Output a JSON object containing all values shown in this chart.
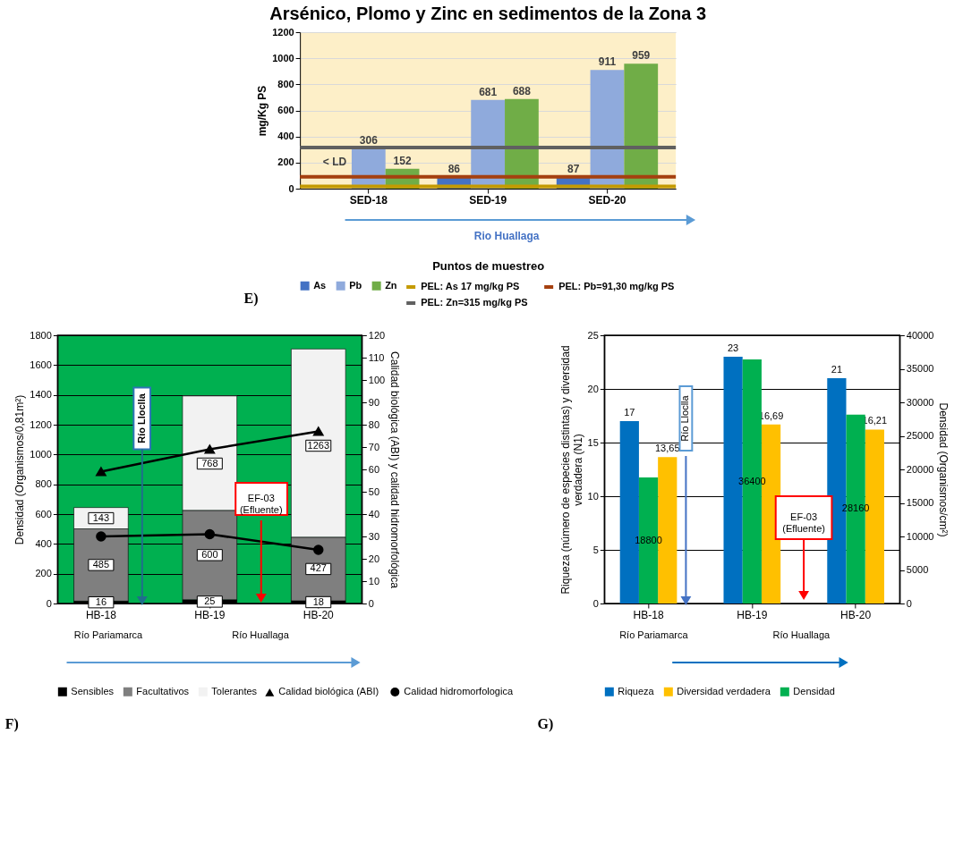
{
  "chart_data": [
    {
      "type": "bar",
      "title": "Arsénico, Plomo y Zinc en sedimentos de la Zona 3",
      "xlabel": "Puntos de muestreo",
      "ylabel": "mg/Kg PS",
      "categories": [
        "SED-18",
        "SED-19",
        "SED-20"
      ],
      "series": [
        {
          "name": "As",
          "color": "#4472c4",
          "values": [
            null,
            86,
            87
          ],
          "value_labels": [
            "< LD",
            "86",
            "87"
          ]
        },
        {
          "name": "Pb",
          "color": "#8faadc",
          "values": [
            306,
            681,
            911
          ],
          "value_labels": [
            "306",
            "681",
            "911"
          ]
        },
        {
          "name": "Zn",
          "color": "#70ad47",
          "values": [
            152,
            688,
            959
          ],
          "value_labels": [
            "152",
            "688",
            "959"
          ]
        }
      ],
      "ylim": [
        0,
        1200
      ],
      "yticks": [
        0,
        200,
        400,
        600,
        800,
        1000,
        1200
      ],
      "grid": "y",
      "legend": "bottom",
      "ref_lines": [
        {
          "axis": "y",
          "value": 17,
          "label": "PEL: As 17 mg/kg PS",
          "color": "#c49a00"
        },
        {
          "axis": "y",
          "value": 91.3,
          "label": "PEL: Pb=91,30 mg/kg PS",
          "color": "#a5400f"
        },
        {
          "axis": "y",
          "value": 315,
          "label": "PEL: Zn=315 mg/kg PS",
          "color": "#606060"
        }
      ],
      "annotations": [
        "Rio Huallaga",
        "E)"
      ]
    },
    {
      "type": "bar",
      "stacked": true,
      "categories": [
        "HB-18",
        "HB-19",
        "HB-20"
      ],
      "ylabel": "Densidad (Organismos/0,81m²)",
      "y2label": "Calidad biológica (ABI) y calidad hidromorfológica",
      "series": [
        {
          "name": "Sensibles",
          "color": "#000000",
          "values": [
            16,
            25,
            18
          ],
          "value_labels": [
            "16",
            "25",
            "18"
          ]
        },
        {
          "name": "Facultativos",
          "color": "#7f7f7f",
          "values": [
            485,
            600,
            427
          ],
          "value_labels": [
            "485",
            "600",
            "427"
          ]
        },
        {
          "name": "Tolerantes",
          "color": "#f2f2f2",
          "values": [
            143,
            768,
            1263
          ],
          "value_labels": [
            "143",
            "768",
            "1263"
          ]
        },
        {
          "name": "Calidad biológica (ABI)",
          "type": "line",
          "axis": "y2",
          "color": "#000000",
          "marker": "triangle",
          "values": [
            59,
            69,
            77
          ]
        },
        {
          "name": "Calidad hidromorfologica",
          "type": "line",
          "axis": "y2",
          "color": "#000000",
          "marker": "circle",
          "values": [
            30,
            31,
            24
          ]
        }
      ],
      "ylim": [
        0,
        1800
      ],
      "yticks": [
        0,
        200,
        400,
        600,
        800,
        1000,
        1200,
        1400,
        1600,
        1800
      ],
      "y2lim": [
        0,
        120
      ],
      "y2ticks": [
        0,
        10,
        20,
        30,
        40,
        50,
        60,
        70,
        80,
        90,
        100,
        110,
        120
      ],
      "grid": "y",
      "legend": "bottom",
      "annotations": [
        "Río Pariamarca",
        "Río Huallaga",
        "Río Lloclla",
        "EF-03\n(Efluente)",
        "F)"
      ]
    },
    {
      "type": "bar",
      "categories": [
        "HB-18",
        "HB-19",
        "HB-20"
      ],
      "ylabel": "Riqueza (número de especies distintas) y diversidad\nverdadera (N1)",
      "y2label": "Densidad (Organismos/cm²)",
      "series": [
        {
          "name": "Riqueza",
          "color": "#0070c0",
          "values": [
            17,
            23,
            21
          ],
          "value_labels": [
            "17",
            "23",
            "21"
          ]
        },
        {
          "name": "Diversidad verdadera",
          "color": "#ffc000",
          "values": [
            13.65,
            16.69,
            16.21
          ],
          "value_labels": [
            "13,65",
            "16,69",
            "16,21"
          ]
        },
        {
          "name": "Densidad",
          "color": "#00b050",
          "axis": "y2",
          "values": [
            18800,
            36400,
            28160
          ],
          "value_labels": [
            "18800",
            "36400",
            "28160"
          ]
        }
      ],
      "ylim": [
        0,
        25
      ],
      "yticks": [
        0,
        5,
        10,
        15,
        20,
        25
      ],
      "y2lim": [
        0,
        40000
      ],
      "y2ticks": [
        0,
        5000,
        10000,
        15000,
        20000,
        25000,
        30000,
        35000,
        40000
      ],
      "grid": "y",
      "legend": "bottom",
      "annotations": [
        "Río Pariamarca",
        "Río Huallaga",
        "Río Lloclla",
        "EF-03\n(Efluente)",
        "G)"
      ]
    }
  ]
}
